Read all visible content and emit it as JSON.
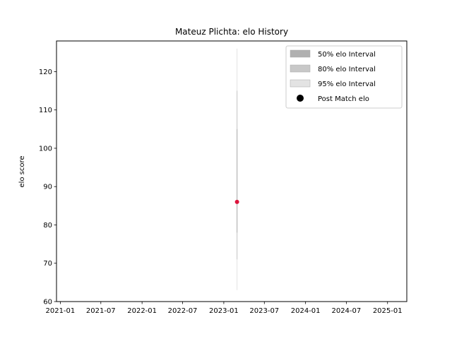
{
  "chart_data": {
    "type": "scatter",
    "title": "Mateuz Plichta: elo History",
    "xlabel": "",
    "ylabel": "elo score",
    "x_type": "date",
    "xlim": [
      "2020-12-15",
      "2025-03-28"
    ],
    "ylim": [
      60,
      128
    ],
    "xticks": [
      "2021-01",
      "2021-07",
      "2022-01",
      "2022-07",
      "2023-01",
      "2023-07",
      "2024-01",
      "2024-07",
      "2025-01"
    ],
    "yticks": [
      60,
      70,
      80,
      90,
      100,
      110,
      120
    ],
    "grid": false,
    "legend_position": "top-right",
    "legend": [
      {
        "label": "50% elo Interval",
        "kind": "patch",
        "color": "#b0b0b0"
      },
      {
        "label": "80% elo Interval",
        "kind": "patch",
        "color": "#c8c8c8"
      },
      {
        "label": "95% elo Interval",
        "kind": "patch",
        "color": "#e3e3e3"
      },
      {
        "label": "Post Match elo",
        "kind": "marker",
        "color": "#000000"
      }
    ],
    "points": [
      {
        "date": "2023-03-01",
        "elo": 86,
        "interval_50": [
          78,
          105
        ],
        "interval_80": [
          71,
          115
        ],
        "interval_95": [
          63,
          126
        ]
      }
    ],
    "colors": {
      "point": "#dc143c",
      "interval_50": "#b0b0b0",
      "interval_80": "#c8c8c8",
      "interval_95": "#e3e3e3"
    }
  }
}
